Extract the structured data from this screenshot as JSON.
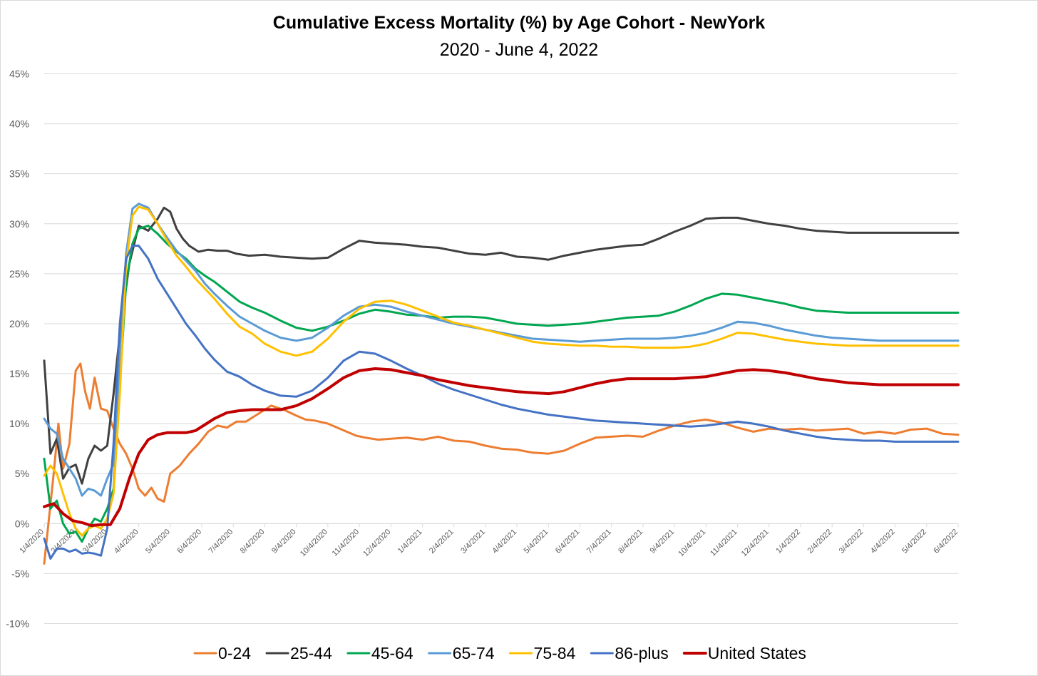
{
  "chart_data": {
    "type": "line",
    "title": "Cumulative Excess Mortality (%) by Age Cohort - NewYork",
    "subtitle": "2020 - June 4, 2022",
    "xlabel": "",
    "ylabel": "",
    "ylim": [
      -10,
      45
    ],
    "grid": true,
    "legend_position": "bottom",
    "y_ticks": [
      "45%",
      "40%",
      "35%",
      "30%",
      "25%",
      "20%",
      "15%",
      "10%",
      "5%",
      "0%",
      "-5%",
      "-10%"
    ],
    "y_tick_values": [
      45,
      40,
      35,
      30,
      25,
      20,
      15,
      10,
      5,
      0,
      -5,
      -10
    ],
    "x_ticks": [
      "1/4/2020",
      "2/4/2020",
      "3/4/2020",
      "4/4/2020",
      "5/4/2020",
      "6/4/2020",
      "7/4/2020",
      "8/4/2020",
      "9/4/2020",
      "10/4/2020",
      "11/4/2020",
      "12/4/2020",
      "1/4/2021",
      "2/4/2021",
      "3/4/2021",
      "4/4/2021",
      "5/4/2021",
      "6/4/2021",
      "7/4/2021",
      "8/4/2021",
      "9/4/2021",
      "10/4/2021",
      "11/4/2021",
      "12/4/2021",
      "1/4/2022",
      "2/4/2022",
      "3/4/2022",
      "4/4/2022",
      "5/4/2022",
      "6/4/2022"
    ],
    "x_domain": [
      0,
      29
    ],
    "series": [
      {
        "name": "0-24",
        "color": "#ED7D31",
        "width": 3,
        "x": [
          0,
          0.3,
          0.45,
          0.6,
          0.8,
          1.0,
          1.15,
          1.3,
          1.45,
          1.6,
          1.8,
          2.0,
          2.2,
          2.4,
          2.6,
          2.8,
          3.0,
          3.2,
          3.4,
          3.6,
          3.8,
          4.0,
          4.3,
          4.6,
          4.9,
          5.2,
          5.5,
          5.8,
          6.1,
          6.4,
          6.8,
          7.2,
          7.6,
          8.0,
          8.3,
          8.6,
          9.0,
          9.3,
          9.6,
          9.9,
          10.2,
          10.6,
          11.0,
          11.5,
          12.0,
          12.5,
          13.0,
          13.5,
          14.0,
          14.5,
          15.0,
          15.5,
          16.0,
          16.5,
          17.0,
          17.5,
          18.0,
          18.5,
          19.0,
          19.5,
          20.0,
          20.5,
          21.0,
          21.5,
          22.0,
          22.5,
          23.0,
          23.5,
          24.0,
          24.5,
          25.0,
          25.5,
          26.0,
          26.5,
          27.0,
          27.5,
          28.0,
          28.5,
          29.0
        ],
        "y": [
          -4,
          5,
          10,
          5.5,
          8,
          15.3,
          16,
          13.2,
          11.5,
          14.6,
          11.5,
          11.3,
          9.5,
          8,
          7,
          5.5,
          3.5,
          2.8,
          3.6,
          2.5,
          2.2,
          5,
          5.8,
          7,
          8,
          9.2,
          9.8,
          9.6,
          10.2,
          10.2,
          11,
          11.8,
          11.4,
          10.8,
          10.4,
          10.3,
          10,
          9.6,
          9.2,
          8.8,
          8.6,
          8.4,
          8.5,
          8.6,
          8.4,
          8.7,
          8.3,
          8.2,
          7.8,
          7.5,
          7.4,
          7.1,
          7.0,
          7.3,
          8.0,
          8.6,
          8.7,
          8.8,
          8.7,
          9.3,
          9.8,
          10.2,
          10.4,
          10.1,
          9.6,
          9.2,
          9.5,
          9.4,
          9.5,
          9.3,
          9.4,
          9.5,
          9.0,
          9.2,
          9.0,
          9.4,
          9.5,
          9.0,
          8.9
        ]
      },
      {
        "name": "25-44",
        "color": "#404040",
        "width": 3,
        "x": [
          0,
          0.2,
          0.4,
          0.6,
          0.8,
          1.0,
          1.2,
          1.4,
          1.6,
          1.8,
          2.0,
          2.2,
          2.4,
          2.7,
          3.0,
          3.3,
          3.6,
          3.8,
          4.0,
          4.2,
          4.4,
          4.6,
          4.9,
          5.2,
          5.5,
          5.8,
          6.1,
          6.5,
          7.0,
          7.5,
          8.0,
          8.5,
          9.0,
          9.5,
          10.0,
          10.5,
          11.0,
          11.5,
          12.0,
          12.5,
          13.0,
          13.5,
          14.0,
          14.5,
          15.0,
          15.5,
          16.0,
          16.5,
          17.0,
          17.5,
          18.0,
          18.5,
          19.0,
          19.5,
          20.0,
          20.5,
          21.0,
          21.5,
          22.0,
          22.5,
          23.0,
          23.5,
          24.0,
          24.5,
          25.0,
          25.5,
          26.0,
          26.5,
          27.0,
          27.5,
          28.0,
          28.5,
          29.0
        ],
        "y": [
          16.3,
          7,
          8.5,
          4.5,
          5.6,
          5.9,
          4.0,
          6.5,
          7.8,
          7.3,
          7.8,
          13,
          19,
          26,
          29.8,
          29.3,
          30.5,
          31.6,
          31.2,
          29.5,
          28.5,
          27.8,
          27.2,
          27.4,
          27.3,
          27.3,
          27.0,
          26.8,
          26.9,
          26.7,
          26.6,
          26.5,
          26.6,
          27.5,
          28.3,
          28.1,
          28.0,
          27.9,
          27.7,
          27.6,
          27.3,
          27.0,
          26.9,
          27.1,
          26.7,
          26.6,
          26.4,
          26.8,
          27.1,
          27.4,
          27.6,
          27.8,
          27.9,
          28.5,
          29.2,
          29.8,
          30.5,
          30.6,
          30.6,
          30.3,
          30.0,
          29.8,
          29.5,
          29.3,
          29.2,
          29.1,
          29.1,
          29.1,
          29.1,
          29.1,
          29.1,
          29.1,
          29.1
        ]
      },
      {
        "name": "45-64",
        "color": "#00A650",
        "width": 3,
        "x": [
          0,
          0.2,
          0.4,
          0.6,
          0.8,
          1.0,
          1.2,
          1.4,
          1.6,
          1.8,
          2.0,
          2.2,
          2.4,
          2.6,
          2.8,
          3.0,
          3.3,
          3.6,
          3.9,
          4.2,
          4.5,
          4.8,
          5.1,
          5.4,
          5.8,
          6.2,
          6.6,
          7.0,
          7.5,
          8.0,
          8.5,
          9.0,
          9.5,
          10.0,
          10.5,
          11.0,
          11.5,
          12.0,
          12.5,
          13.0,
          13.5,
          14.0,
          14.5,
          15.0,
          15.5,
          16.0,
          16.5,
          17.0,
          17.5,
          18.0,
          18.5,
          19.0,
          19.5,
          20.0,
          20.5,
          21.0,
          21.5,
          22.0,
          22.5,
          23.0,
          23.5,
          24.0,
          24.5,
          25.0,
          25.5,
          26.0,
          26.5,
          27.0,
          27.5,
          28.0,
          28.5,
          29.0
        ],
        "y": [
          6.5,
          1.5,
          2.3,
          0,
          -1,
          -0.8,
          -1.8,
          -0.5,
          0.5,
          0.2,
          1.5,
          3.5,
          14,
          24,
          28,
          29.5,
          29.8,
          29.0,
          28.0,
          27.2,
          26.5,
          25.5,
          24.8,
          24.2,
          23.2,
          22.2,
          21.6,
          21.1,
          20.3,
          19.6,
          19.3,
          19.7,
          20.3,
          21.0,
          21.4,
          21.2,
          20.9,
          20.8,
          20.6,
          20.7,
          20.7,
          20.6,
          20.3,
          20.0,
          19.9,
          19.8,
          19.9,
          20.0,
          20.2,
          20.4,
          20.6,
          20.7,
          20.8,
          21.2,
          21.8,
          22.5,
          23.0,
          22.9,
          22.6,
          22.3,
          22.0,
          21.6,
          21.3,
          21.2,
          21.1,
          21.1,
          21.1,
          21.1,
          21.1,
          21.1,
          21.1,
          21.1
        ]
      },
      {
        "name": "65-74",
        "color": "#5B9BD5",
        "width": 3,
        "x": [
          0,
          0.2,
          0.4,
          0.6,
          0.8,
          1.0,
          1.2,
          1.4,
          1.6,
          1.8,
          2.0,
          2.2,
          2.4,
          2.6,
          2.8,
          3.0,
          3.3,
          3.6,
          3.9,
          4.2,
          4.5,
          4.8,
          5.1,
          5.4,
          5.8,
          6.2,
          6.6,
          7.0,
          7.5,
          8.0,
          8.5,
          9.0,
          9.5,
          10.0,
          10.5,
          11.0,
          11.5,
          12.0,
          12.5,
          13.0,
          13.5,
          14.0,
          14.5,
          15.0,
          15.5,
          16.0,
          16.5,
          17.0,
          17.5,
          18.0,
          18.5,
          19.0,
          19.5,
          20.0,
          20.5,
          21.0,
          21.5,
          22.0,
          22.5,
          23.0,
          23.5,
          24.0,
          24.5,
          25.0,
          25.5,
          26.0,
          26.5,
          27.0,
          27.5,
          28.0,
          28.5,
          29.0
        ],
        "y": [
          10.5,
          9.5,
          9,
          6.5,
          5.5,
          4.5,
          2.8,
          3.5,
          3.3,
          2.8,
          4.5,
          6,
          16,
          27,
          31.5,
          32.0,
          31.6,
          30.0,
          28.6,
          27.3,
          26.3,
          25.3,
          24.0,
          23.0,
          21.8,
          20.7,
          20.0,
          19.3,
          18.6,
          18.3,
          18.6,
          19.6,
          20.8,
          21.7,
          21.9,
          21.7,
          21.2,
          20.8,
          20.4,
          20.0,
          19.7,
          19.4,
          19.1,
          18.8,
          18.5,
          18.4,
          18.3,
          18.2,
          18.3,
          18.4,
          18.5,
          18.5,
          18.5,
          18.6,
          18.8,
          19.1,
          19.6,
          20.2,
          20.1,
          19.8,
          19.4,
          19.1,
          18.8,
          18.6,
          18.5,
          18.4,
          18.3,
          18.3,
          18.3,
          18.3,
          18.3,
          18.3
        ]
      },
      {
        "name": "75-84",
        "color": "#FFC000",
        "width": 3,
        "x": [
          0,
          0.2,
          0.4,
          0.6,
          0.8,
          1.0,
          1.2,
          1.4,
          1.6,
          1.8,
          2.0,
          2.2,
          2.4,
          2.6,
          2.8,
          3.0,
          3.3,
          3.6,
          3.9,
          4.2,
          4.5,
          4.8,
          5.1,
          5.4,
          5.8,
          6.2,
          6.6,
          7.0,
          7.5,
          8.0,
          8.5,
          9.0,
          9.5,
          10.0,
          10.5,
          11.0,
          11.5,
          12.0,
          12.5,
          13.0,
          13.5,
          14.0,
          14.5,
          15.0,
          15.5,
          16.0,
          16.5,
          17.0,
          17.5,
          18.0,
          18.5,
          19.0,
          19.5,
          20.0,
          20.5,
          21.0,
          21.5,
          22.0,
          22.5,
          23.0,
          23.5,
          24.0,
          24.5,
          25.0,
          25.5,
          26.0,
          26.5,
          27.0,
          27.5,
          28.0,
          28.5,
          29.0
        ],
        "y": [
          4.8,
          5.8,
          5,
          3,
          1,
          -0.5,
          -1.2,
          -0.5,
          -0.2,
          -0.5,
          0.5,
          3,
          13,
          26,
          30.8,
          31.7,
          31.4,
          30.0,
          28.3,
          26.8,
          25.7,
          24.5,
          23.5,
          22.5,
          21.0,
          19.7,
          19.0,
          18.0,
          17.2,
          16.8,
          17.2,
          18.5,
          20.2,
          21.5,
          22.2,
          22.3,
          21.9,
          21.3,
          20.7,
          20.1,
          19.8,
          19.4,
          19.0,
          18.6,
          18.2,
          18.0,
          17.9,
          17.8,
          17.8,
          17.7,
          17.7,
          17.6,
          17.6,
          17.6,
          17.7,
          18.0,
          18.5,
          19.1,
          19.0,
          18.7,
          18.4,
          18.2,
          18.0,
          17.9,
          17.8,
          17.8,
          17.8,
          17.8,
          17.8,
          17.8,
          17.8,
          17.8
        ]
      },
      {
        "name": "86-plus",
        "color": "#4472C4",
        "width": 3,
        "x": [
          0,
          0.2,
          0.4,
          0.6,
          0.8,
          1.0,
          1.2,
          1.4,
          1.6,
          1.8,
          2.0,
          2.2,
          2.4,
          2.6,
          2.8,
          3.0,
          3.3,
          3.6,
          3.9,
          4.2,
          4.5,
          4.8,
          5.1,
          5.4,
          5.8,
          6.2,
          6.6,
          7.0,
          7.5,
          8.0,
          8.5,
          9.0,
          9.5,
          10.0,
          10.5,
          11.0,
          11.5,
          12.0,
          12.5,
          13.0,
          13.5,
          14.0,
          14.5,
          15.0,
          15.5,
          16.0,
          16.5,
          17.0,
          17.5,
          18.0,
          18.5,
          19.0,
          19.5,
          20.0,
          20.5,
          21.0,
          21.5,
          22.0,
          22.5,
          23.0,
          23.5,
          24.0,
          24.5,
          25.0,
          25.5,
          26.0,
          26.5,
          27.0,
          27.5,
          28.0,
          28.5,
          29.0
        ],
        "y": [
          -1.5,
          -3.5,
          -2.5,
          -2.5,
          -2.8,
          -2.6,
          -3.0,
          -2.9,
          -3.0,
          -3.2,
          -0.5,
          8,
          20,
          26.5,
          27.8,
          27.8,
          26.5,
          24.5,
          23.0,
          21.5,
          20.0,
          18.8,
          17.5,
          16.4,
          15.2,
          14.7,
          13.9,
          13.3,
          12.8,
          12.7,
          13.3,
          14.6,
          16.3,
          17.2,
          17.0,
          16.3,
          15.5,
          14.8,
          14.0,
          13.4,
          12.9,
          12.4,
          11.9,
          11.5,
          11.2,
          10.9,
          10.7,
          10.5,
          10.3,
          10.2,
          10.1,
          10.0,
          9.9,
          9.8,
          9.7,
          9.8,
          10.0,
          10.2,
          10.0,
          9.7,
          9.3,
          9.0,
          8.7,
          8.5,
          8.4,
          8.3,
          8.3,
          8.2,
          8.2,
          8.2,
          8.2,
          8.2
        ]
      },
      {
        "name": "United States",
        "color": "#C00000",
        "width": 4,
        "x": [
          0,
          0.3,
          0.6,
          0.9,
          1.2,
          1.5,
          1.8,
          2.1,
          2.4,
          2.7,
          3.0,
          3.3,
          3.6,
          3.9,
          4.2,
          4.5,
          4.8,
          5.1,
          5.4,
          5.8,
          6.2,
          6.6,
          7.0,
          7.5,
          8.0,
          8.5,
          9.0,
          9.5,
          10.0,
          10.5,
          11.0,
          11.5,
          12.0,
          12.5,
          13.0,
          13.5,
          14.0,
          14.5,
          15.0,
          15.5,
          16.0,
          16.5,
          17.0,
          17.5,
          18.0,
          18.5,
          19.0,
          19.5,
          20.0,
          20.5,
          21.0,
          21.5,
          22.0,
          22.5,
          23.0,
          23.5,
          24.0,
          24.5,
          25.0,
          25.5,
          26.0,
          26.5,
          27.0,
          27.5,
          28.0,
          28.5,
          29.0
        ],
        "y": [
          1.7,
          2.0,
          1.0,
          0.3,
          0.1,
          -0.2,
          -0.1,
          -0.1,
          1.5,
          4.5,
          7.0,
          8.4,
          8.9,
          9.1,
          9.1,
          9.1,
          9.3,
          9.9,
          10.5,
          11.1,
          11.3,
          11.4,
          11.4,
          11.4,
          11.8,
          12.5,
          13.5,
          14.6,
          15.3,
          15.5,
          15.4,
          15.1,
          14.8,
          14.4,
          14.1,
          13.8,
          13.6,
          13.4,
          13.2,
          13.1,
          13.0,
          13.2,
          13.6,
          14.0,
          14.3,
          14.5,
          14.5,
          14.5,
          14.5,
          14.6,
          14.7,
          15.0,
          15.3,
          15.4,
          15.3,
          15.1,
          14.8,
          14.5,
          14.3,
          14.1,
          14.0,
          13.9,
          13.9,
          13.9,
          13.9,
          13.9,
          13.9
        ]
      }
    ]
  }
}
